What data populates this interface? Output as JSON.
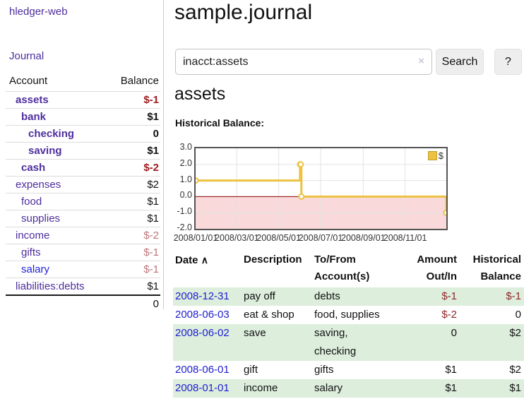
{
  "colors": {
    "link_purple": "#4e2e9e",
    "link_blue": "#2222dd",
    "negative_strong": "#9e1a1e",
    "negative_light": "#bb7478",
    "negative_table": "#8f2629",
    "row_green": "#ddeedd",
    "series_gold": "#edc240",
    "negative_region_pink": "#f9d9d9",
    "zero_line_red": "#8b0000"
  },
  "sidebar": {
    "brand": "hledger-web",
    "journal_label": "Journal",
    "accounts_table": {
      "headers": {
        "account": "Account",
        "balance": "Balance"
      },
      "rows": [
        {
          "name": "assets",
          "indent": 1,
          "bold": true,
          "link": "visited",
          "balance": "$-1",
          "balance_style": "neg-strong"
        },
        {
          "name": "bank",
          "indent": 2,
          "bold": true,
          "link": "visited",
          "balance": "$1",
          "balance_style": "pos-bold"
        },
        {
          "name": "checking",
          "indent": 3,
          "bold": true,
          "link": "visited",
          "balance": "0",
          "balance_style": "pos-bold"
        },
        {
          "name": "saving",
          "indent": 3,
          "bold": true,
          "link": "visited",
          "balance": "$1",
          "balance_style": "pos-bold"
        },
        {
          "name": "cash",
          "indent": 2,
          "bold": true,
          "link": "visited",
          "balance": "$-2",
          "balance_style": "neg-strong"
        },
        {
          "name": "expenses",
          "indent": 1,
          "bold": false,
          "link": "visited",
          "balance": "$2",
          "balance_style": "pos"
        },
        {
          "name": "food",
          "indent": 2,
          "bold": false,
          "link": "visited",
          "balance": "$1",
          "balance_style": "pos"
        },
        {
          "name": "supplies",
          "indent": 2,
          "bold": false,
          "link": "visited",
          "balance": "$1",
          "balance_style": "pos"
        },
        {
          "name": "income",
          "indent": 1,
          "bold": false,
          "link": "visited",
          "balance": "$-2",
          "balance_style": "neg-light"
        },
        {
          "name": "gifts",
          "indent": 2,
          "bold": false,
          "link": "visited",
          "balance": "$-1",
          "balance_style": "neg-light"
        },
        {
          "name": "salary",
          "indent": 2,
          "bold": false,
          "link": "unvisited",
          "balance": "$-1",
          "balance_style": "neg-light"
        },
        {
          "name": "liabilities:debts",
          "indent": 1,
          "bold": false,
          "link": "visited",
          "balance": "$1",
          "balance_style": "pos"
        }
      ],
      "total": "0"
    }
  },
  "main": {
    "title": "sample.journal",
    "search": {
      "value": "inacct:assets",
      "clear_icon": "×",
      "button_label": "Search",
      "help_label": "?"
    },
    "account_heading": "assets"
  },
  "chart_data": {
    "type": "line",
    "step": true,
    "title": "Historical Balance:",
    "xrange": [
      "2008-01-01",
      "2008-12-31"
    ],
    "ylim": [
      -2,
      3
    ],
    "yticks": [
      "3.0",
      "2.0",
      "1.0",
      "0.0",
      "-1.0",
      "-2.0"
    ],
    "xticks": [
      {
        "label": "2008/01/01",
        "date": "2008-01-01"
      },
      {
        "label": "2008/03/01",
        "date": "2008-03-01"
      },
      {
        "label": "2008/05/01",
        "date": "2008-05-01"
      },
      {
        "label": "2008/07/01",
        "date": "2008-07-01"
      },
      {
        "label": "2008/09/01",
        "date": "2008-09-01"
      },
      {
        "label": "2008/11/01",
        "date": "2008-11-01"
      }
    ],
    "series": [
      {
        "name": "$",
        "color": "#edc240",
        "points": [
          [
            "2008-01-01",
            1
          ],
          [
            "2008-06-01",
            2
          ],
          [
            "2008-06-02",
            2
          ],
          [
            "2008-06-03",
            0
          ],
          [
            "2008-12-31",
            -1
          ]
        ]
      }
    ],
    "negative_region_color": "#f9d9d9",
    "zero_line_color": "#8b0000",
    "grid": true,
    "legend_position": "top-right"
  },
  "register": {
    "headers": {
      "date": "Date",
      "sort_icon": "∧",
      "description": "Description",
      "accounts": "To/From Account(s)",
      "amount": "Amount Out/In",
      "balance": "Historical Balance"
    },
    "rows": [
      {
        "date": "2008-12-31",
        "description": "pay off",
        "accounts": "debts",
        "amount": "$-1",
        "amount_neg": true,
        "balance": "$-1",
        "balance_neg": true,
        "shaded": true
      },
      {
        "date": "2008-06-03",
        "description": "eat & shop",
        "accounts": "food, supplies",
        "amount": "$-2",
        "amount_neg": true,
        "balance": "0",
        "balance_neg": false,
        "shaded": false
      },
      {
        "date": "2008-06-02",
        "description": "save",
        "accounts": "saving, checking",
        "amount": "0",
        "amount_neg": false,
        "balance": "$2",
        "balance_neg": false,
        "shaded": true
      },
      {
        "date": "2008-06-01",
        "description": "gift",
        "accounts": "gifts",
        "amount": "$1",
        "amount_neg": false,
        "balance": "$2",
        "balance_neg": false,
        "shaded": false
      },
      {
        "date": "2008-01-01",
        "description": "income",
        "accounts": "salary",
        "amount": "$1",
        "amount_neg": false,
        "balance": "$1",
        "balance_neg": false,
        "shaded": true
      }
    ]
  }
}
